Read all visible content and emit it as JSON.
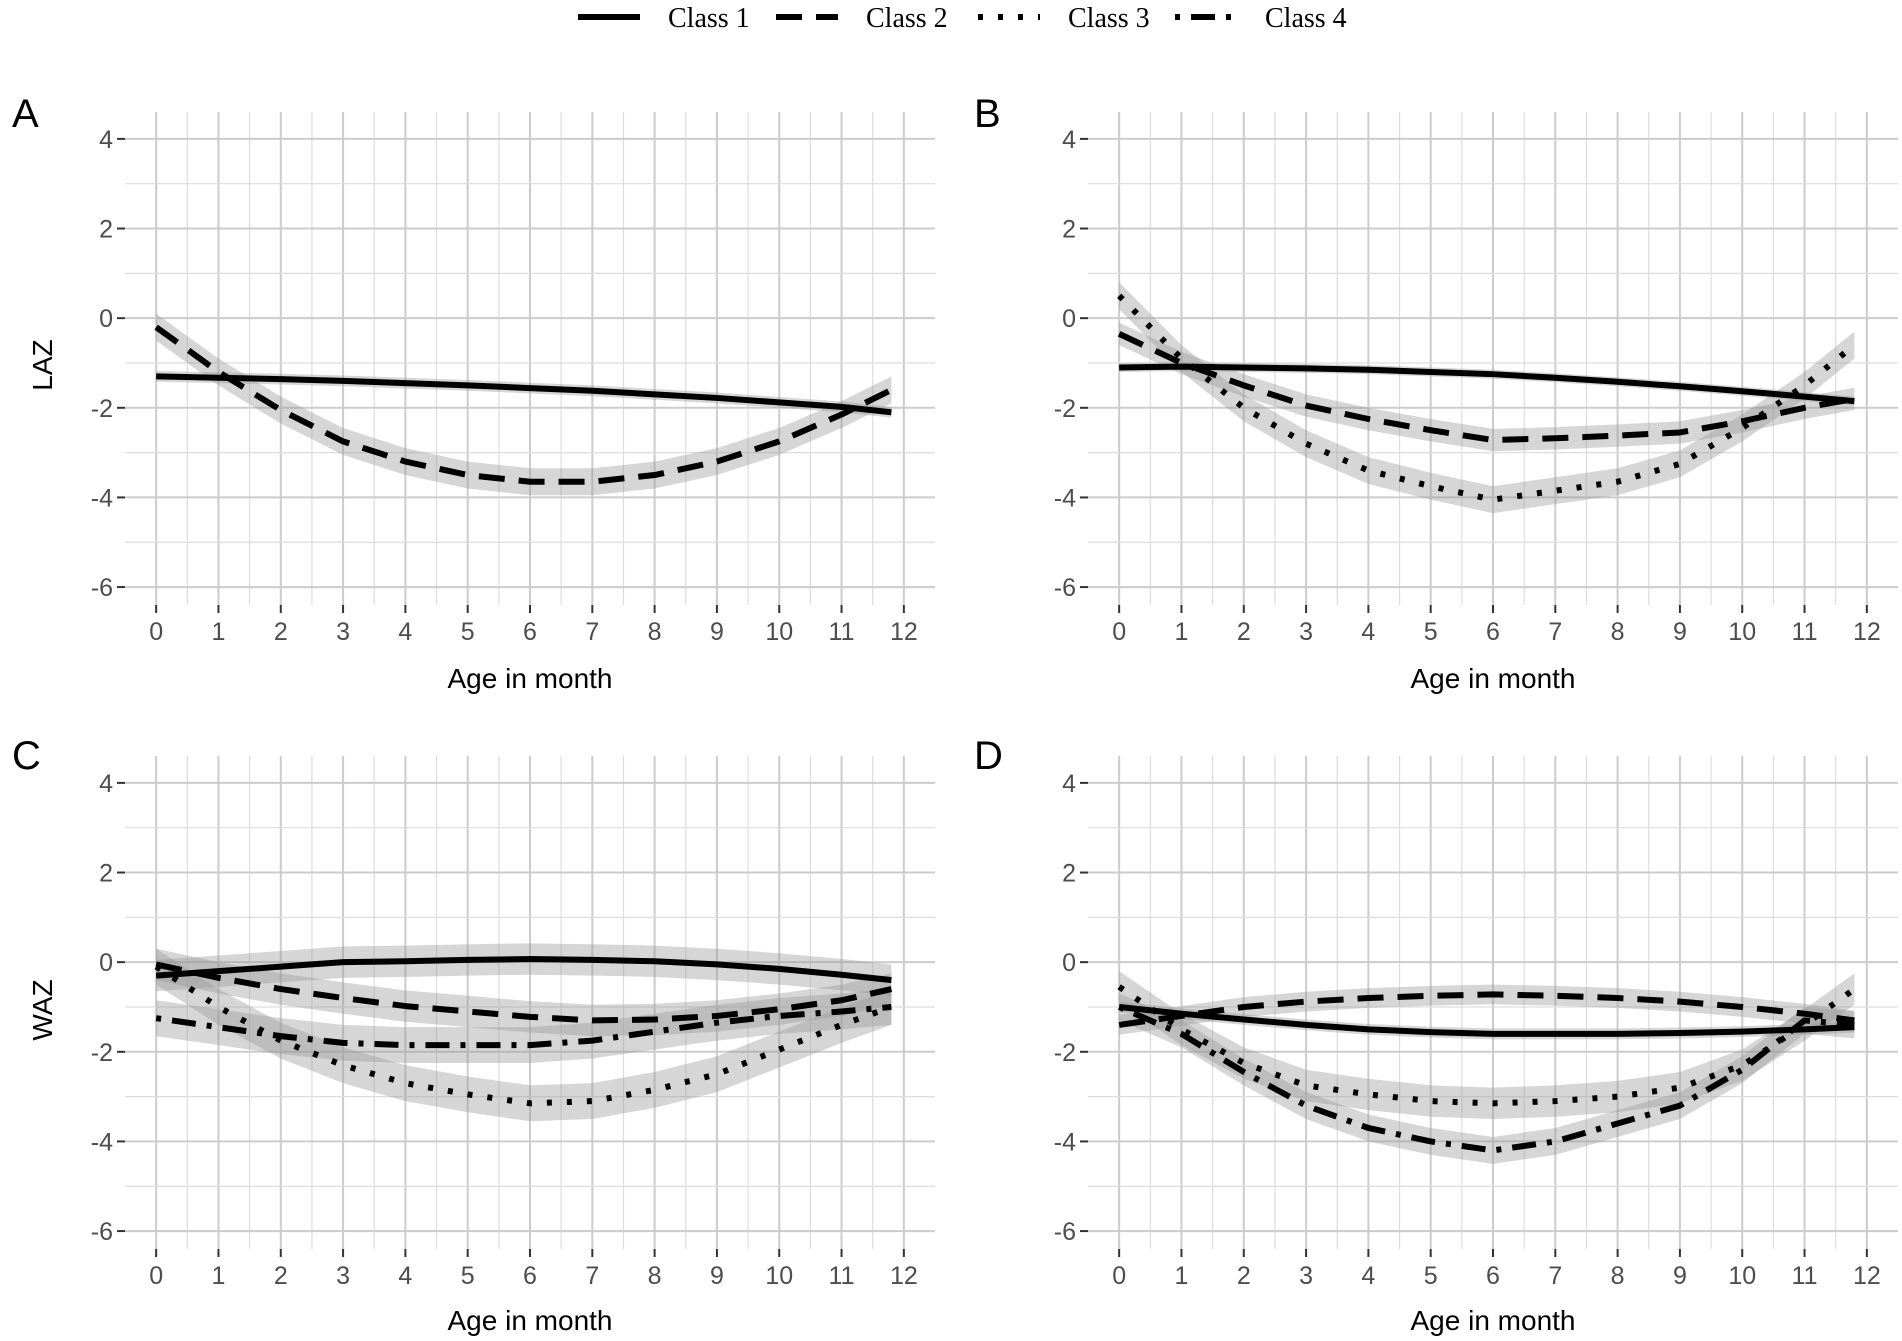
{
  "legend": {
    "entries": [
      {
        "label": "Class 1",
        "dash": "solid"
      },
      {
        "label": "Class 2",
        "dash": "dashed"
      },
      {
        "label": "Class 3",
        "dash": "dotted"
      },
      {
        "label": "Class 4",
        "dash": "dotdash"
      }
    ]
  },
  "chart_data": [
    {
      "type": "line",
      "panel": "A",
      "xlabel": "Age in month",
      "ylabel": "LAZ",
      "xlim": [
        -0.5,
        12.5
      ],
      "ylim": [
        -6.4,
        4.6
      ],
      "xticks": [
        0,
        1,
        2,
        3,
        4,
        5,
        6,
        7,
        8,
        9,
        10,
        11,
        12
      ],
      "yticks": [
        -6,
        -4,
        -2,
        0,
        2,
        4
      ],
      "grid": true,
      "series": [
        {
          "name": "Class 1",
          "dash": "solid",
          "band": 0.12,
          "x": [
            0,
            1,
            2,
            3,
            4,
            5,
            6,
            7,
            8,
            9,
            10,
            11,
            11.8
          ],
          "y": [
            -1.3,
            -1.33,
            -1.36,
            -1.4,
            -1.45,
            -1.5,
            -1.56,
            -1.62,
            -1.7,
            -1.78,
            -1.88,
            -1.98,
            -2.1
          ]
        },
        {
          "name": "Class 2",
          "dash": "dashed",
          "band": 0.3,
          "x": [
            0,
            1,
            2,
            3,
            4,
            5,
            6,
            7,
            8,
            9,
            10,
            11,
            11.8
          ],
          "y": [
            -0.2,
            -1.2,
            -2.05,
            -2.75,
            -3.2,
            -3.5,
            -3.65,
            -3.65,
            -3.5,
            -3.2,
            -2.75,
            -2.15,
            -1.6
          ]
        }
      ]
    },
    {
      "type": "line",
      "panel": "B",
      "xlabel": "Age in month",
      "ylabel": "",
      "xlim": [
        -0.5,
        12.5
      ],
      "ylim": [
        -6.4,
        4.6
      ],
      "xticks": [
        0,
        1,
        2,
        3,
        4,
        5,
        6,
        7,
        8,
        9,
        10,
        11,
        12
      ],
      "yticks": [
        -6,
        -4,
        -2,
        0,
        2,
        4
      ],
      "grid": true,
      "series": [
        {
          "name": "Class 1",
          "dash": "solid",
          "band": 0.1,
          "x": [
            0,
            1,
            2,
            3,
            4,
            5,
            6,
            7,
            8,
            9,
            10,
            11,
            11.8
          ],
          "y": [
            -1.1,
            -1.08,
            -1.1,
            -1.12,
            -1.15,
            -1.2,
            -1.25,
            -1.33,
            -1.42,
            -1.52,
            -1.63,
            -1.75,
            -1.85
          ]
        },
        {
          "name": "Class 2",
          "dash": "dashed",
          "band": 0.25,
          "x": [
            0,
            1,
            2,
            3,
            4,
            5,
            6,
            7,
            8,
            9,
            10,
            11,
            11.8
          ],
          "y": [
            -0.35,
            -1.0,
            -1.5,
            -1.95,
            -2.25,
            -2.5,
            -2.72,
            -2.68,
            -2.62,
            -2.55,
            -2.3,
            -2.0,
            -1.8
          ]
        },
        {
          "name": "Class 3",
          "dash": "dotted",
          "band": 0.3,
          "x": [
            0,
            1,
            2,
            3,
            4,
            5,
            6,
            7,
            8,
            9,
            10,
            11,
            11.8
          ],
          "y": [
            0.5,
            -0.9,
            -2.0,
            -2.8,
            -3.4,
            -3.75,
            -4.05,
            -3.85,
            -3.65,
            -3.25,
            -2.45,
            -1.5,
            -0.6
          ]
        }
      ]
    },
    {
      "type": "line",
      "panel": "C",
      "xlabel": "Age in month",
      "ylabel": "WAZ",
      "xlim": [
        -0.5,
        12.5
      ],
      "ylim": [
        -6.4,
        4.6
      ],
      "xticks": [
        0,
        1,
        2,
        3,
        4,
        5,
        6,
        7,
        8,
        9,
        10,
        11,
        12
      ],
      "yticks": [
        -6,
        -4,
        -2,
        0,
        2,
        4
      ],
      "grid": true,
      "series": [
        {
          "name": "Class 1",
          "dash": "solid",
          "band": 0.35,
          "x": [
            0,
            1,
            2,
            3,
            4,
            5,
            6,
            7,
            8,
            9,
            10,
            11,
            11.8
          ],
          "y": [
            -0.3,
            -0.2,
            -0.1,
            0.0,
            0.02,
            0.05,
            0.07,
            0.05,
            0.02,
            -0.05,
            -0.15,
            -0.28,
            -0.4
          ]
        },
        {
          "name": "Class 2",
          "dash": "dashed",
          "band": 0.35,
          "x": [
            0,
            1,
            2,
            3,
            4,
            5,
            6,
            7,
            8,
            9,
            10,
            11,
            11.8
          ],
          "y": [
            -0.05,
            -0.35,
            -0.6,
            -0.8,
            -0.98,
            -1.1,
            -1.22,
            -1.3,
            -1.28,
            -1.2,
            -1.05,
            -0.85,
            -0.6
          ]
        },
        {
          "name": "Class 3",
          "dash": "dotted",
          "band": 0.4,
          "x": [
            0,
            1,
            2,
            3,
            4,
            5,
            6,
            7,
            8,
            9,
            10,
            11,
            11.8
          ],
          "y": [
            -0.1,
            -1.0,
            -1.75,
            -2.3,
            -2.7,
            -2.95,
            -3.15,
            -3.1,
            -2.85,
            -2.5,
            -1.95,
            -1.4,
            -1.0
          ]
        },
        {
          "name": "Class 4",
          "dash": "dotdash",
          "band": 0.4,
          "x": [
            0,
            1,
            2,
            3,
            4,
            5,
            6,
            7,
            8,
            9,
            10,
            11,
            11.8
          ],
          "y": [
            -1.25,
            -1.45,
            -1.65,
            -1.8,
            -1.85,
            -1.85,
            -1.85,
            -1.75,
            -1.55,
            -1.35,
            -1.2,
            -1.1,
            -1.0
          ]
        }
      ]
    },
    {
      "type": "line",
      "panel": "D",
      "xlabel": "Age in month",
      "ylabel": "",
      "xlim": [
        -0.5,
        12.5
      ],
      "ylim": [
        -6.4,
        4.6
      ],
      "xticks": [
        0,
        1,
        2,
        3,
        4,
        5,
        6,
        7,
        8,
        9,
        10,
        11,
        12
      ],
      "yticks": [
        -6,
        -4,
        -2,
        0,
        2,
        4
      ],
      "grid": true,
      "series": [
        {
          "name": "Class 1",
          "dash": "solid",
          "band": 0.12,
          "x": [
            0,
            1,
            2,
            3,
            4,
            5,
            6,
            7,
            8,
            9,
            10,
            11,
            11.8
          ],
          "y": [
            -1.0,
            -1.15,
            -1.28,
            -1.4,
            -1.5,
            -1.56,
            -1.6,
            -1.6,
            -1.6,
            -1.58,
            -1.55,
            -1.5,
            -1.45
          ]
        },
        {
          "name": "Class 2",
          "dash": "dashed",
          "band": 0.22,
          "x": [
            0,
            1,
            2,
            3,
            4,
            5,
            6,
            7,
            8,
            9,
            10,
            11,
            11.8
          ],
          "y": [
            -1.4,
            -1.2,
            -1.0,
            -0.88,
            -0.8,
            -0.75,
            -0.72,
            -0.75,
            -0.8,
            -0.88,
            -1.0,
            -1.15,
            -1.3
          ]
        },
        {
          "name": "Class 3",
          "dash": "dotted",
          "band": 0.35,
          "x": [
            0,
            1,
            2,
            3,
            4,
            5,
            6,
            7,
            8,
            9,
            10,
            11,
            11.8
          ],
          "y": [
            -0.55,
            -1.5,
            -2.25,
            -2.75,
            -2.95,
            -3.1,
            -3.15,
            -3.1,
            -3.0,
            -2.8,
            -2.3,
            -1.4,
            -0.6
          ]
        },
        {
          "name": "Class 4",
          "dash": "dotdash",
          "band": 0.3,
          "x": [
            0,
            1,
            2,
            3,
            4,
            5,
            6,
            7,
            8,
            9,
            10,
            11,
            11.8
          ],
          "y": [
            -1.0,
            -1.6,
            -2.45,
            -3.2,
            -3.7,
            -4.0,
            -4.2,
            -4.0,
            -3.6,
            -3.2,
            -2.4,
            -1.3,
            -1.4
          ]
        }
      ]
    }
  ]
}
